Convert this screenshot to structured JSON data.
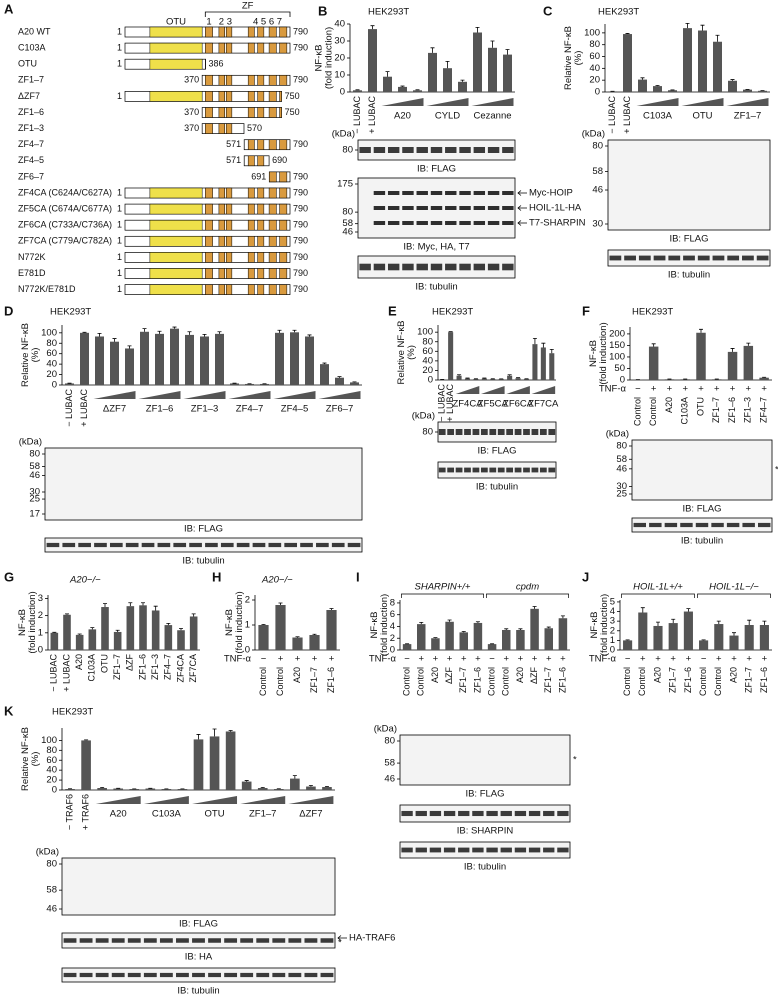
{
  "constructs": {
    "panel": "A",
    "domain_labels": {
      "otu": "OTU",
      "zf": "ZF"
    },
    "zf_numbers": [
      "1",
      "2 3",
      "4 5 6 7"
    ],
    "otu_color": "#efe04a",
    "zf_color": "#d99a3e",
    "rows": [
      {
        "name": "A20 WT",
        "start": 1,
        "end": 790
      },
      {
        "name": "C103A",
        "start": 1,
        "end": 790
      },
      {
        "name": "OTU",
        "start": 1,
        "end": 386
      },
      {
        "name": "ZF1–7",
        "start": 370,
        "end": 790
      },
      {
        "name": "ΔZF7",
        "start": 1,
        "end": 750
      },
      {
        "name": "ZF1–6",
        "start": 370,
        "end": 750
      },
      {
        "name": "ZF1–3",
        "start": 370,
        "end": 570
      },
      {
        "name": "ZF4–7",
        "start": 571,
        "end": 790
      },
      {
        "name": "ZF4–5",
        "start": 571,
        "end": 690
      },
      {
        "name": "ZF6–7",
        "start": 691,
        "end": 790
      },
      {
        "name": "ZF4CA (C624A/C627A)",
        "start": 1,
        "end": 790
      },
      {
        "name": "ZF5CA (C674A/C677A)",
        "start": 1,
        "end": 790
      },
      {
        "name": "ZF6CA (C733A/C736A)",
        "start": 1,
        "end": 790
      },
      {
        "name": "ZF7CA (C779A/C782A)",
        "start": 1,
        "end": 790
      },
      {
        "name": "N772K",
        "start": 1,
        "end": 790
      },
      {
        "name": "E781D",
        "start": 1,
        "end": 790
      },
      {
        "name": "N772K/E781D",
        "start": 1,
        "end": 790
      }
    ]
  },
  "chart_data": [
    {
      "panel": "B",
      "type": "bar",
      "title": "HEK293T",
      "y_label": [
        "NF-κB",
        "(fold induction)"
      ],
      "categories": [
        "− LUBAC",
        "+ LUBAC",
        null,
        null,
        null,
        null,
        null,
        null,
        null,
        null,
        null
      ],
      "groups": [
        "A20",
        "CYLD",
        "Cezanne"
      ],
      "values": [
        1,
        37,
        9,
        3,
        1,
        23,
        14,
        6,
        35,
        26,
        22
      ],
      "errors": [
        0.3,
        2,
        3,
        0.5,
        0.3,
        3,
        4,
        1,
        3,
        4,
        3
      ],
      "ylim": [
        0,
        40
      ],
      "yticks": [
        0,
        10,
        20,
        30,
        40
      ],
      "color": "#555555",
      "blots": [
        {
          "unit": "(kDa)",
          "markers": [
            80
          ],
          "caption": "IB: FLAG"
        },
        {
          "markers": [
            175,
            80,
            58,
            46
          ],
          "caption": "IB: Myc, HA, T7",
          "annotations": [
            "Myc-HOIP",
            "HOIL-1L-HA",
            "T7-SHARPIN"
          ]
        },
        {
          "caption": "IB: tubulin"
        }
      ]
    },
    {
      "panel": "C",
      "type": "bar",
      "title": "HEK293T",
      "y_label": [
        "Relative NF-κB",
        "(%)"
      ],
      "categories": [
        "− LUBAC",
        "+ LUBAC",
        null,
        null,
        null,
        null,
        null,
        null,
        null,
        null,
        null
      ],
      "groups": [
        "C103A",
        "OTU",
        "ZF1–7"
      ],
      "values": [
        1,
        98,
        21,
        10,
        3,
        108,
        104,
        85,
        19,
        4,
        2
      ],
      "errors": [
        0.3,
        1,
        3,
        1,
        0.5,
        8,
        9,
        11,
        2,
        0.5,
        0.3
      ],
      "ylim": [
        0,
        115
      ],
      "yticks": [
        0,
        20,
        40,
        60,
        80,
        100
      ],
      "color": "#555555",
      "blots": [
        {
          "unit": "(kDa)",
          "markers": [
            80,
            58,
            46,
            30
          ],
          "caption": "IB: FLAG"
        },
        {
          "caption": "IB: tubulin"
        }
      ]
    },
    {
      "panel": "D",
      "type": "bar",
      "title": "HEK293T",
      "y_label": [
        "Relative NF-κB",
        "(%)"
      ],
      "categories": [
        "− LUBAC",
        "+ LUBAC",
        null,
        null,
        null,
        null,
        null,
        null,
        null,
        null,
        null,
        null,
        null,
        null,
        null,
        null,
        null,
        null,
        null,
        null
      ],
      "groups": [
        "ΔZF7",
        "ZF1–6",
        "ZF1–3",
        "ZF4–7",
        "ZF4–5",
        "ZF6–7"
      ],
      "values": [
        3,
        100,
        93,
        83,
        70,
        102,
        98,
        108,
        96,
        93,
        98,
        3,
        2,
        2,
        100,
        101,
        93,
        40,
        14,
        5
      ],
      "errors": [
        0.5,
        1,
        6,
        6,
        5,
        6,
        5,
        3,
        6,
        4,
        4,
        0.5,
        0.3,
        0.3,
        5,
        4,
        3,
        2,
        2,
        1
      ],
      "ylim": [
        0,
        115
      ],
      "yticks": [
        0,
        20,
        40,
        60,
        80,
        100
      ],
      "color": "#555555",
      "blots": [
        {
          "unit": "(kDa)",
          "markers": [
            80,
            58,
            46,
            30,
            25,
            17
          ],
          "caption": "IB: FLAG"
        },
        {
          "caption": "IB: tubulin"
        }
      ]
    },
    {
      "panel": "E",
      "type": "bar",
      "title": "HEK293T",
      "y_label": [
        "Relative NF-κB",
        "(%)"
      ],
      "categories": [
        "− LUBAC",
        "+ LUBAC",
        null,
        null,
        null,
        null,
        null,
        null,
        null,
        null,
        null,
        null,
        null,
        null
      ],
      "groups": [
        "ZF4CA",
        "ZF5CA",
        "ZF6CA",
        "ZF7CA"
      ],
      "values": [
        1,
        100,
        9,
        3,
        2,
        3,
        2,
        2,
        9,
        4,
        2,
        75,
        68,
        56
      ],
      "errors": [
        0.3,
        1,
        2,
        1,
        0.5,
        1,
        0.5,
        0.3,
        2,
        1,
        0.5,
        12,
        9,
        8
      ],
      "ylim": [
        0,
        115
      ],
      "yticks": [
        0,
        20,
        40,
        60,
        80,
        100
      ],
      "color": "#555555",
      "blots": [
        {
          "unit": "(kDa)",
          "markers": [
            80
          ],
          "caption": "IB: FLAG"
        },
        {
          "caption": "IB: tubulin"
        }
      ]
    },
    {
      "panel": "F",
      "type": "bar",
      "title": "HEK293T",
      "y_label": [
        "NF-κB",
        "(fold induction)"
      ],
      "categories": [
        "Control",
        "Control",
        "A20",
        "C103A",
        "OTU",
        "ZF1–7",
        "ZF1–6",
        "ZF1–3",
        "ZF4–7"
      ],
      "treatment": {
        "label": "TNF-α",
        "signs": [
          "−",
          "+",
          "+",
          "+",
          "+",
          "+",
          "+",
          "+",
          "+"
        ]
      },
      "values": [
        1,
        145,
        3,
        3,
        205,
        3,
        122,
        148,
        10
      ],
      "errors": [
        0.5,
        12,
        1,
        1,
        15,
        1,
        15,
        12,
        2
      ],
      "ylim": [
        0,
        230
      ],
      "yticks": [
        0,
        50,
        100,
        150,
        200
      ],
      "color": "#555555",
      "blots": [
        {
          "unit": "(kDa)",
          "markers": [
            80,
            58,
            46,
            30,
            25
          ],
          "caption": "IB: FLAG",
          "annotations": [
            "*"
          ]
        },
        {
          "caption": "IB: tubulin"
        }
      ]
    },
    {
      "panel": "G",
      "type": "bar",
      "title": "A20−/−",
      "title_style": "italic",
      "y_label": [
        "NF-κB",
        "(fold induction)"
      ],
      "categories": [
        "− LUBAC",
        "+ LUBAC",
        "A20",
        "C103A",
        "OTU",
        "ZF1–7",
        "ΔZF",
        "ZF1–6",
        "ZF1–3",
        "ZF4–7",
        "ZF4CA",
        "ZF7CA"
      ],
      "values": [
        1.0,
        2.05,
        0.88,
        1.2,
        2.5,
        1.05,
        2.55,
        2.6,
        2.3,
        1.45,
        1.15,
        1.95
      ],
      "errors": [
        0.03,
        0.05,
        0.05,
        0.1,
        0.2,
        0.1,
        0.2,
        0.15,
        0.25,
        0.1,
        0.1,
        0.15
      ],
      "ylim": [
        0,
        3.2
      ],
      "yticks": [
        0,
        1,
        2,
        3
      ],
      "color": "#555555"
    },
    {
      "panel": "H",
      "type": "bar",
      "title": "A20−/−",
      "title_style": "italic",
      "y_label": [
        "NF-κB",
        "(fold induction)"
      ],
      "categories": [
        "Control",
        "Control",
        "A20",
        "ZF1–7",
        "ZF1–6"
      ],
      "treatment": {
        "label": "TNF-α",
        "signs": [
          "−",
          "+",
          "+",
          "+",
          "+"
        ]
      },
      "values": [
        1,
        1.8,
        0.5,
        0.6,
        1.6
      ],
      "errors": [
        0.02,
        0.08,
        0.03,
        0.03,
        0.06
      ],
      "ylim": [
        0,
        2.2
      ],
      "yticks": [
        0,
        1,
        2
      ],
      "color": "#555555"
    },
    {
      "panel": "I",
      "type": "bar",
      "y_label": [
        "NF-κB",
        "(fold induction)"
      ],
      "group_headers": [
        "SHARPIN+/+",
        "cpdm"
      ],
      "categories": [
        "Control",
        "Control",
        "A20",
        "ΔZF",
        "ZF1–7",
        "ZF1–6",
        "Control",
        "Control",
        "A20",
        "ΔZF",
        "ZF1–7",
        "ZF1–6"
      ],
      "treatment": {
        "label": "TNF-α",
        "signs": [
          "−",
          "+",
          "+",
          "+",
          "+",
          "+",
          "−",
          "+",
          "+",
          "+",
          "+",
          "+"
        ]
      },
      "values": [
        1,
        4.4,
        2.0,
        4.8,
        3.0,
        4.6,
        1.0,
        3.4,
        3.4,
        7.0,
        3.7,
        5.4
      ],
      "errors": [
        0.05,
        0.3,
        0.1,
        0.3,
        0.15,
        0.2,
        0.05,
        0.2,
        0.2,
        0.4,
        0.2,
        0.4
      ],
      "ylim": [
        0,
        8.5
      ],
      "yticks": [
        0,
        2,
        4,
        6,
        8
      ],
      "color": "#555555",
      "blots": [
        {
          "unit": "(kDa)",
          "markers": [
            80,
            58,
            46
          ],
          "caption": "IB: FLAG",
          "annotations": [
            "*"
          ]
        },
        {
          "caption": "IB: SHARPIN"
        },
        {
          "caption": "IB: tubulin"
        }
      ]
    },
    {
      "panel": "J",
      "type": "bar",
      "y_label": [
        "NF-κB",
        "(fold induction)"
      ],
      "group_headers": [
        "HOIL-1L+/+",
        "HOIL-1L−/−"
      ],
      "categories": [
        "Control",
        "Control",
        "A20",
        "ZF1–7",
        "ZF1–6",
        "Control",
        "Control",
        "A20",
        "ZF1–7",
        "ZF1–6"
      ],
      "treatment": {
        "label": "TNF-α",
        "signs": [
          "−",
          "+",
          "+",
          "+",
          "+",
          "−",
          "+",
          "+",
          "+",
          "+"
        ]
      },
      "values": [
        1,
        3.9,
        2.5,
        2.8,
        4.0,
        1.0,
        2.7,
        1.5,
        2.6,
        2.6
      ],
      "errors": [
        0.05,
        0.5,
        0.4,
        0.4,
        0.3,
        0.05,
        0.3,
        0.3,
        0.5,
        0.4
      ],
      "ylim": [
        0,
        5.2
      ],
      "yticks": [
        0,
        1,
        2,
        3,
        4,
        5
      ],
      "color": "#555555"
    },
    {
      "panel": "K",
      "type": "bar",
      "title": "HEK293T",
      "y_label": [
        "Relative NF-κB",
        "(%)"
      ],
      "categories": [
        "− TRAF6",
        "+ TRAF6",
        null,
        null,
        null,
        null,
        null,
        null,
        null,
        null,
        null,
        null,
        null,
        null,
        null,
        null,
        null
      ],
      "groups": [
        "A20",
        "C103A",
        "OTU",
        "ZF1–7",
        "ΔZF7"
      ],
      "values": [
        2,
        100,
        4,
        3,
        2,
        3,
        2,
        2,
        102,
        108,
        118,
        17,
        4,
        2,
        23,
        7,
        6
      ],
      "errors": [
        0.5,
        1,
        1,
        0.5,
        0.3,
        0.5,
        0.3,
        0.3,
        10,
        15,
        2,
        2,
        1,
        0.5,
        6,
        2,
        1
      ],
      "ylim": [
        0,
        125
      ],
      "yticks": [
        0,
        20,
        40,
        60,
        80,
        100
      ],
      "color": "#555555",
      "blots": [
        {
          "unit": "(kDa)",
          "markers": [
            80,
            58,
            46
          ],
          "caption": "IB: FLAG"
        },
        {
          "caption": "IB: HA",
          "annotations": [
            "HA-TRAF6",
            "*"
          ]
        },
        {
          "caption": "IB: tubulin"
        }
      ]
    }
  ]
}
